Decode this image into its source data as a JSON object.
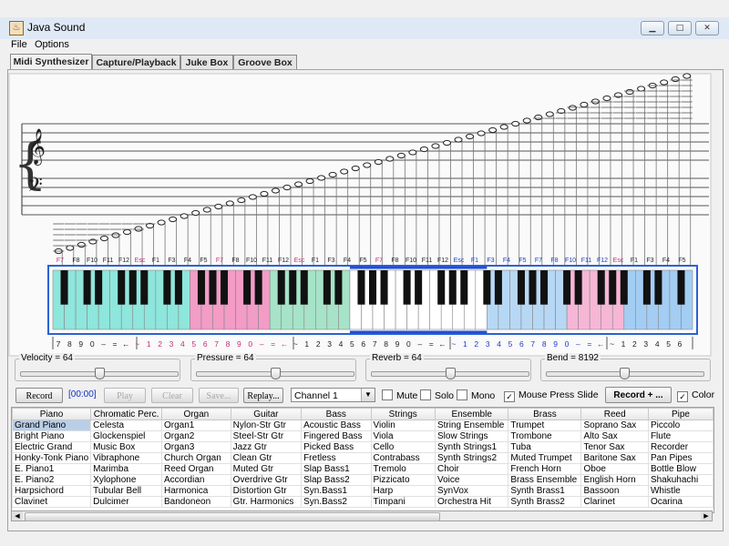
{
  "window": {
    "title": "Java Sound",
    "app_icon": "java-cup-icon",
    "buttons": [
      "minimize-icon",
      "maximize-icon",
      "close-icon"
    ]
  },
  "menu": [
    "File",
    "Options"
  ],
  "tabs": [
    "Midi Synthesizer",
    "Capture/Playback",
    "Juke Box",
    "Groove Box"
  ],
  "keyboard": {
    "key_labels_top": [
      "F7",
      "F8",
      "F10",
      "F11",
      "F12",
      "Esc",
      "F1",
      "F3",
      "F4",
      "F5",
      "F7",
      "F8",
      "F10",
      "F11",
      "F12",
      "Esc",
      "F1",
      "F3",
      "F4",
      "F5",
      "F7",
      "F8",
      "F10",
      "F11",
      "F12",
      "Esc",
      "F1",
      "F3",
      "F4",
      "F5",
      "F7",
      "F8",
      "F10",
      "F11",
      "F12",
      "Esc",
      "F1",
      "F3",
      "F4",
      "F5"
    ],
    "key_labels_bottom": [
      "7",
      "8",
      "9",
      "0",
      "–",
      "=",
      "←",
      "~",
      "1",
      "2",
      "3",
      "4",
      "5",
      "6",
      "7",
      "8",
      "9",
      "0",
      "–",
      "=",
      "←",
      "~",
      "1",
      "2",
      "3",
      "4",
      "5",
      "6",
      "7",
      "8",
      "9",
      "0",
      "–",
      "=",
      "←",
      "~",
      "1",
      "2",
      "3",
      "4",
      "5",
      "6",
      "7",
      "8",
      "9",
      "0",
      "–",
      "=",
      "←",
      "~",
      "1",
      "2",
      "3",
      "4",
      "5",
      "6"
    ],
    "zone_colors": [
      "#8ee6dc",
      "#f29cc6",
      "#a6e3c8",
      "#ffffff",
      "#b7d8f5",
      "#f6b6d6",
      "#a4cdf3"
    ],
    "active_zone_border": "#1f4ed8",
    "outer_border": "#2a62d4"
  },
  "controls": {
    "velocity": {
      "label": "Velocity = 64",
      "value": 64,
      "max": 127
    },
    "pressure": {
      "label": "Pressure = 64",
      "value": 64,
      "max": 127
    },
    "reverb": {
      "label": "Reverb = 64",
      "value": 64,
      "max": 127
    },
    "bend": {
      "label": "Bend = 8192",
      "value": 8192,
      "max": 16383
    }
  },
  "toolbar": {
    "record": "Record",
    "timer": "[00:00]",
    "play": "Play",
    "clear": "Clear",
    "save": "Save...",
    "replay": "Replay...",
    "channel": "Channel 1",
    "mute": "Mute",
    "solo": "Solo",
    "mono": "Mono",
    "mouse_press_slide": "Mouse Press Slide",
    "record_plus": "Record + ...",
    "color": "Color"
  },
  "instruments": {
    "headers": [
      "Piano",
      "Chromatic Perc.",
      "Organ",
      "Guitar",
      "Bass",
      "Strings",
      "Ensemble",
      "Brass",
      "Reed",
      "Pipe"
    ],
    "rows": [
      [
        "Grand Piano",
        "Celesta",
        "Organ1",
        "Nylon-Str Gtr",
        "Acoustic Bass",
        "Violin",
        "String Ensemble",
        "Trumpet",
        "Soprano Sax",
        "Piccolo"
      ],
      [
        "Bright Piano",
        "Glockenspiel",
        "Organ2",
        "Steel-Str Gtr",
        "Fingered Bass",
        "Viola",
        "Slow Strings",
        "Trombone",
        "Alto Sax",
        "Flute"
      ],
      [
        "Electric Grand",
        "Music Box",
        "Organ3",
        "Jazz Gtr",
        "Picked Bass",
        "Cello",
        "Synth Strings1",
        "Tuba",
        "Tenor Sax",
        "Recorder"
      ],
      [
        "Honky-Tonk Piano",
        "Vibraphone",
        "Church Organ",
        "Clean Gtr",
        "Fretless",
        "Contrabass",
        "Synth Strings2",
        "Muted Trumpet",
        "Baritone Sax",
        "Pan Pipes"
      ],
      [
        "E. Piano1",
        "Marimba",
        "Reed Organ",
        "Muted Gtr",
        "Slap Bass1",
        "Tremolo",
        "Choir",
        "French Horn",
        "Oboe",
        "Bottle Blow"
      ],
      [
        "E. Piano2",
        "Xylophone",
        "Accordian",
        "Overdrive Gtr",
        "Slap Bass2",
        "Pizzicato",
        "Voice",
        "Brass Ensemble",
        "English Horn",
        "Shakuhachi"
      ],
      [
        "Harpsichord",
        "Tubular Bell",
        "Harmonica",
        "Distortion Gtr",
        "Syn.Bass1",
        "Harp",
        "SynVox",
        "Synth Brass1",
        "Bassoon",
        "Whistle"
      ],
      [
        "Clavinet",
        "Dulcimer",
        "Bandoneon",
        "Gtr. Harmonics",
        "Syn.Bass2",
        "Timpani",
        "Orchestra Hit",
        "Synth Brass2",
        "Clarinet",
        "Ocarina"
      ]
    ]
  }
}
